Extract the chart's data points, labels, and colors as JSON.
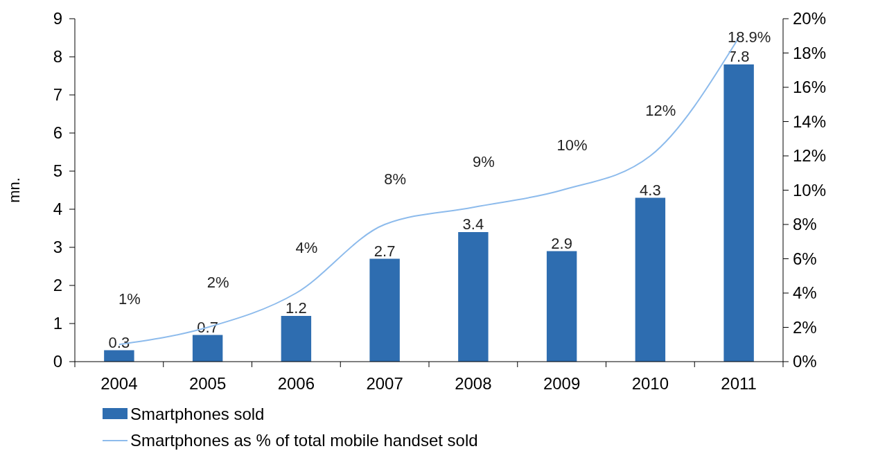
{
  "chart_data": {
    "type": "bar",
    "ylabel": "mn.",
    "categories": [
      "2004",
      "2005",
      "2006",
      "2007",
      "2008",
      "2009",
      "2010",
      "2011"
    ],
    "series": [
      {
        "name": "Smartphones sold",
        "color": "#2e6db0",
        "values": [
          0.3,
          0.7,
          1.2,
          2.7,
          3.4,
          2.9,
          4.3,
          7.8
        ],
        "value_labels": [
          "0.3",
          "0.7",
          "1.2",
          "2.7",
          "3.4",
          "2.9",
          "4.3",
          "7.8"
        ]
      },
      {
        "name": "Smartphones as % of total mobile handset sold",
        "type": "line",
        "axis": "y2",
        "color": "#8dbbec",
        "values": [
          1,
          2,
          4,
          8,
          9,
          10,
          12,
          18.9
        ],
        "value_labels": [
          "1%",
          "2%",
          "4%",
          "8%",
          "9%",
          "10%",
          "12%",
          "18.9%"
        ]
      }
    ],
    "ylim": [
      0,
      9
    ],
    "yticks": [
      0,
      1,
      2,
      3,
      4,
      5,
      6,
      7,
      8,
      9
    ],
    "y2lim": [
      0,
      20
    ],
    "y2ticks": [
      {
        "value": 0,
        "label": "0%"
      },
      {
        "value": 2,
        "label": "2%"
      },
      {
        "value": 4,
        "label": "4%"
      },
      {
        "value": 6,
        "label": "6%"
      },
      {
        "value": 8,
        "label": "8%"
      },
      {
        "value": 10,
        "label": "10%"
      },
      {
        "value": 12,
        "label": "12%"
      },
      {
        "value": 14,
        "label": "14%"
      },
      {
        "value": 16,
        "label": "16%"
      },
      {
        "value": 18,
        "label": "18%"
      },
      {
        "value": 20,
        "label": "20%"
      }
    ],
    "grid": false,
    "legend": "bottom left"
  }
}
